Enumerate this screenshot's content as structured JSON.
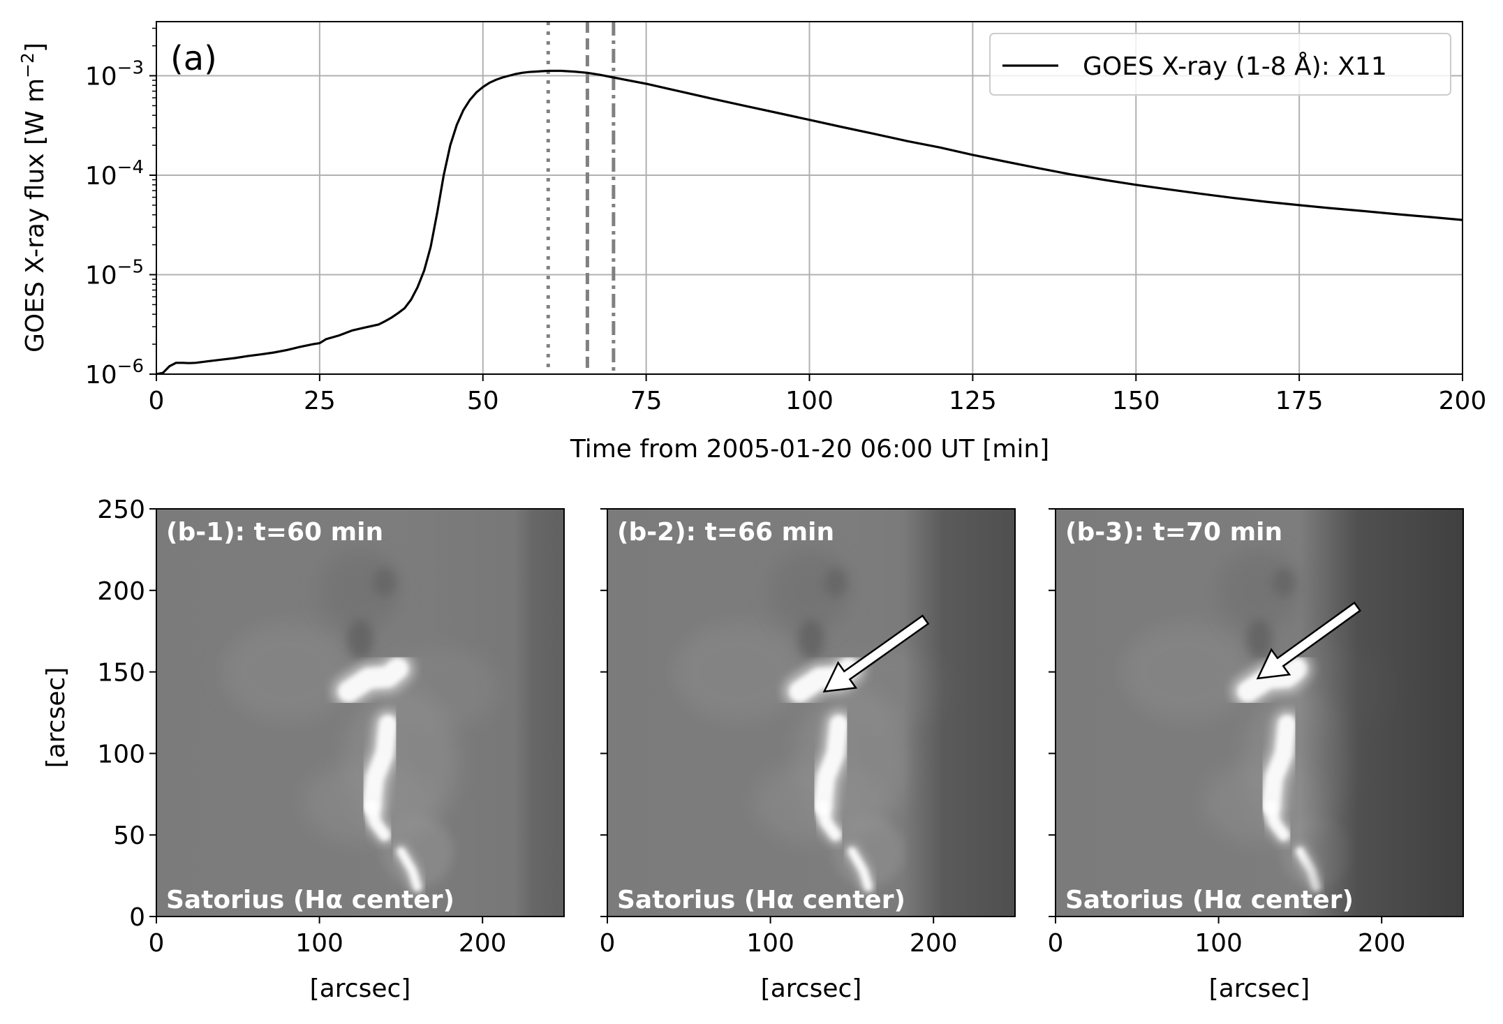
{
  "chart_data": [
    {
      "type": "line",
      "panel_label": "(a)",
      "xlabel": "Time from 2005-01-20 06:00 UT [min]",
      "ylabel_main": "GOES X-ray flux [W m",
      "ylabel_sup": "−2",
      "ylabel_tail": "]",
      "xlim": [
        0,
        200
      ],
      "ylim": [
        1e-06,
        0.0035
      ],
      "yscale": "log",
      "grid": true,
      "legend_position": "top-right",
      "xticks": [
        0,
        25,
        50,
        75,
        100,
        125,
        150,
        175,
        200
      ],
      "xtick_labels": [
        "0",
        "25",
        "50",
        "75",
        "100",
        "125",
        "150",
        "175",
        "200"
      ],
      "yticks": [
        1e-06,
        1e-05,
        0.0001,
        0.001
      ],
      "ytick_labels": [
        {
          "base": "10",
          "exp": "−6"
        },
        {
          "base": "10",
          "exp": "−5"
        },
        {
          "base": "10",
          "exp": "−4"
        },
        {
          "base": "10",
          "exp": "−3"
        }
      ],
      "series": [
        {
          "name": "GOES X-ray (1-8 Å): X11",
          "color": "#000000",
          "x": [
            0,
            1,
            2,
            3,
            4,
            5,
            6,
            8,
            10,
            12,
            14,
            16,
            18,
            20,
            22,
            24,
            25,
            26,
            28,
            30,
            32,
            34,
            35,
            36,
            37,
            38,
            39,
            40,
            41,
            42,
            43,
            44,
            45,
            46,
            47,
            48,
            49,
            50,
            51,
            52,
            53,
            54,
            55,
            56,
            57,
            58,
            59,
            60,
            62,
            64,
            66,
            68,
            70,
            75,
            80,
            85,
            90,
            95,
            100,
            105,
            110,
            115,
            120,
            125,
            130,
            135,
            140,
            145,
            150,
            155,
            160,
            165,
            170,
            175,
            180,
            185,
            190,
            195,
            200
          ],
          "y": [
            1e-06,
            1.03e-06,
            1.2e-06,
            1.3e-06,
            1.3e-06,
            1.29e-06,
            1.3e-06,
            1.35e-06,
            1.4e-06,
            1.45e-06,
            1.52e-06,
            1.58e-06,
            1.65e-06,
            1.75e-06,
            1.88e-06,
            2e-06,
            2.05e-06,
            2.25e-06,
            2.45e-06,
            2.75e-06,
            2.95e-06,
            3.15e-06,
            3.4e-06,
            3.7e-06,
            4.1e-06,
            4.6e-06,
            5.6e-06,
            7.5e-06,
            1.1e-05,
            1.9e-05,
            4.2e-05,
            0.0001,
            0.0002,
            0.00032,
            0.00045,
            0.00057,
            0.00068,
            0.00077,
            0.00085,
            0.00091,
            0.00096,
            0.001,
            0.00104,
            0.00107,
            0.00109,
            0.0011,
            0.00111,
            0.00112,
            0.00112,
            0.0011,
            0.00107,
            0.00102,
            0.00096,
            0.00083,
            0.0007,
            0.00059,
            0.0005,
            0.000425,
            0.00036,
            0.000305,
            0.00026,
            0.00022,
            0.00019,
            0.00016,
            0.000137,
            0.000118,
            0.000102,
            9e-05,
            8e-05,
            7.2e-05,
            6.5e-05,
            5.9e-05,
            5.4e-05,
            5e-05,
            4.65e-05,
            4.35e-05,
            4.05e-05,
            3.8e-05,
            3.55e-05
          ]
        }
      ],
      "vlines": [
        {
          "x": 60,
          "style": "dotted",
          "color": "#808080"
        },
        {
          "x": 66,
          "style": "dashed",
          "color": "#808080"
        },
        {
          "x": 70,
          "style": "dashdot",
          "color": "#808080"
        }
      ]
    },
    {
      "type": "image",
      "panel_label": "(b-1): t=60 min",
      "caption": "Satorius (Hα center)",
      "xlabel": "[arcsec]",
      "ylabel": "[arcsec]",
      "xlim": [
        0,
        250
      ],
      "ylim": [
        0,
        250
      ],
      "xticks": [
        0,
        100,
        200
      ],
      "xtick_labels": [
        "0",
        "100",
        "200"
      ],
      "yticks": [
        0,
        50,
        100,
        150,
        200,
        250
      ],
      "ytick_labels": [
        "0",
        "50",
        "100",
        "150",
        "200",
        "250"
      ],
      "arrow": null
    },
    {
      "type": "image",
      "panel_label": "(b-2): t=66 min",
      "caption": "Satorius (Hα center)",
      "xlabel": "[arcsec]",
      "xlim": [
        0,
        250
      ],
      "ylim": [
        0,
        250
      ],
      "xticks": [
        0,
        100,
        200
      ],
      "xtick_labels": [
        "0",
        "100",
        "200"
      ],
      "yticks": [
        0,
        50,
        100,
        150,
        200,
        250
      ],
      "arrow": {
        "from": [
          195,
          182
        ],
        "to": [
          133,
          138
        ]
      }
    },
    {
      "type": "image",
      "panel_label": "(b-3): t=70 min",
      "caption": "Satorius (Hα center)",
      "xlabel": "[arcsec]",
      "xlim": [
        0,
        250
      ],
      "ylim": [
        0,
        250
      ],
      "xticks": [
        0,
        100,
        200
      ],
      "xtick_labels": [
        "0",
        "100",
        "200"
      ],
      "yticks": [
        0,
        50,
        100,
        150,
        200,
        250
      ],
      "arrow": {
        "from": [
          185,
          190
        ],
        "to": [
          124,
          146
        ]
      }
    }
  ]
}
